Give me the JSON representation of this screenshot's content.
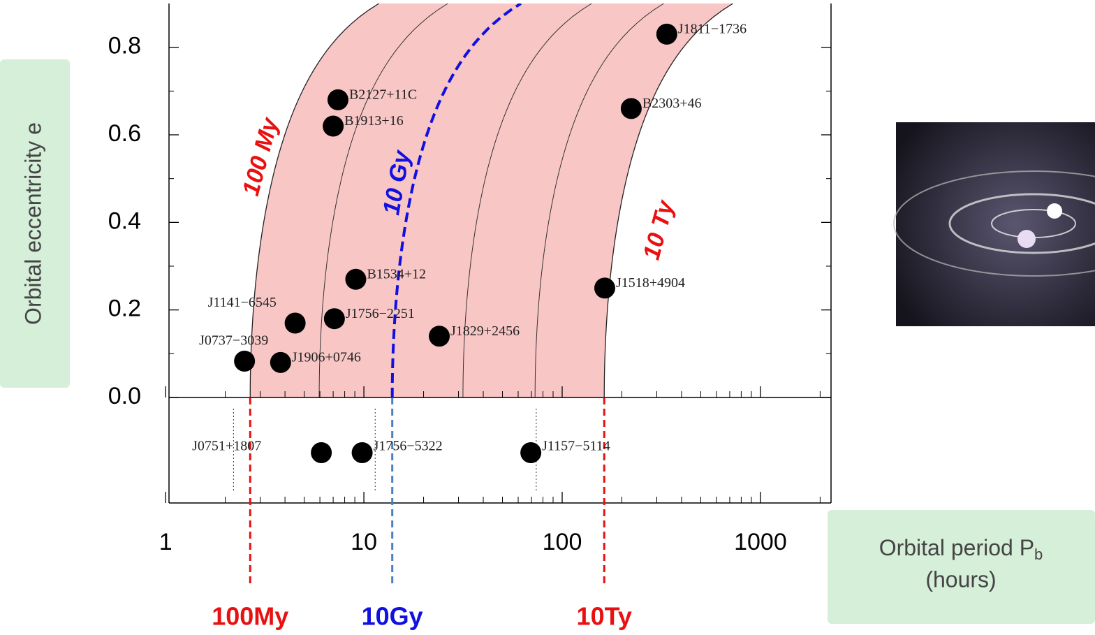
{
  "chart_data": {
    "type": "scatter",
    "y_label": "Orbital eccentricity  e",
    "x_label": "Orbital period  P",
    "x_label_sub": "b",
    "x_label_unit": "(hours)",
    "x_log": true,
    "xlim": [
      1.04,
      2270
    ],
    "ylim": [
      0,
      0.9
    ],
    "xticks": [
      1,
      10,
      100,
      1000
    ],
    "yticks": [
      {
        "value": 0,
        "label": "0.0"
      },
      0.2,
      0.4,
      0.6,
      0.8
    ],
    "point_color": "#000000",
    "band_color": "#f9c6c6",
    "pulsars": {
      "labels": [
        "J1811−1736",
        "B2303+46",
        "B2127+11C",
        "B1913+16",
        "B1534+12",
        "J1518+4904",
        "J1141−6545",
        "J1756−2251",
        "J1829+2456",
        "J0737−3039",
        "J1906+0746"
      ],
      "x": [
        337,
        223,
        7.4,
        7.0,
        9.1,
        164,
        4.5,
        7.1,
        24,
        2.5,
        3.8
      ],
      "values": [
        0.83,
        0.66,
        0.68,
        0.62,
        0.27,
        0.25,
        0.17,
        0.18,
        0.14,
        0.083,
        0.08
      ]
    },
    "circular_pulsars": {
      "labels": [
        "J0751+1807",
        "J1756−5322",
        "J1157−5114"
      ],
      "x": [
        6.1,
        9.8,
        69.5
      ]
    },
    "circular_markers": [
      2.2,
      11.4,
      74
    ],
    "lifetimes": [
      {
        "label": "100My",
        "curve_label": "100 My",
        "period": 2.67,
        "color": "#e81010",
        "line_color": "#e81010"
      },
      {
        "label": "10Gy",
        "curve_label": "10 Gy",
        "period": 13.9,
        "color": "#1010e0",
        "line_color": "#4a7fc1"
      },
      {
        "label": "10Ty",
        "curve_label": "10 Ty",
        "period": 163,
        "color": "#e81010",
        "line_color": "#e81010"
      }
    ],
    "isochrones": [
      5.95,
      31.6,
      73
    ]
  }
}
